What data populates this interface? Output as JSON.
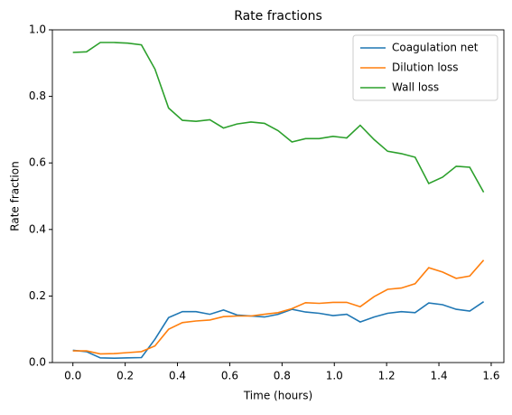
{
  "chart_data": {
    "type": "line",
    "title": "Rate fractions",
    "xlabel": "Time (hours)",
    "ylabel": "Rate fraction",
    "x": [
      0,
      0.052,
      0.105,
      0.157,
      0.209,
      0.262,
      0.314,
      0.366,
      0.419,
      0.471,
      0.524,
      0.576,
      0.628,
      0.681,
      0.733,
      0.785,
      0.838,
      0.89,
      0.942,
      0.995,
      1.047,
      1.099,
      1.152,
      1.204,
      1.256,
      1.309,
      1.361,
      1.414,
      1.466,
      1.518,
      1.571
    ],
    "series": [
      {
        "name": "Coagulation net",
        "color": "#1f77b4",
        "values": [
          0.037,
          0.033,
          0.014,
          0.013,
          0.014,
          0.015,
          0.07,
          0.135,
          0.153,
          0.153,
          0.145,
          0.158,
          0.143,
          0.14,
          0.137,
          0.145,
          0.16,
          0.152,
          0.148,
          0.141,
          0.145,
          0.122,
          0.137,
          0.148,
          0.153,
          0.15,
          0.179,
          0.174,
          0.16,
          0.155,
          0.183
        ]
      },
      {
        "name": "Dilution loss",
        "color": "#ff7f0e",
        "values": [
          0.035,
          0.035,
          0.026,
          0.027,
          0.03,
          0.033,
          0.05,
          0.1,
          0.12,
          0.125,
          0.128,
          0.138,
          0.14,
          0.14,
          0.145,
          0.15,
          0.162,
          0.18,
          0.178,
          0.181,
          0.181,
          0.168,
          0.198,
          0.22,
          0.224,
          0.237,
          0.285,
          0.272,
          0.253,
          0.26,
          0.308
        ]
      },
      {
        "name": "Wall loss",
        "color": "#2ca02c",
        "values": [
          0.932,
          0.934,
          0.962,
          0.962,
          0.96,
          0.955,
          0.882,
          0.765,
          0.728,
          0.725,
          0.73,
          0.705,
          0.717,
          0.723,
          0.719,
          0.697,
          0.663,
          0.673,
          0.673,
          0.68,
          0.675,
          0.713,
          0.67,
          0.635,
          0.628,
          0.617,
          0.538,
          0.557,
          0.59,
          0.587,
          0.512
        ]
      }
    ],
    "xlim": [
      -0.0785,
      1.6485
    ],
    "xticks": [
      {
        "value": 0,
        "label": "0.0"
      },
      0.2,
      0.4,
      0.6,
      0.8,
      {
        "value": 1,
        "label": "1.0"
      },
      1.2,
      1.4,
      1.6
    ],
    "ylim": [
      0,
      1
    ],
    "yticks": [
      {
        "value": 0,
        "label": "0.0"
      },
      0.2,
      0.4,
      0.6,
      0.8,
      {
        "value": 1,
        "label": "1.0"
      }
    ],
    "legend": "upper right"
  }
}
